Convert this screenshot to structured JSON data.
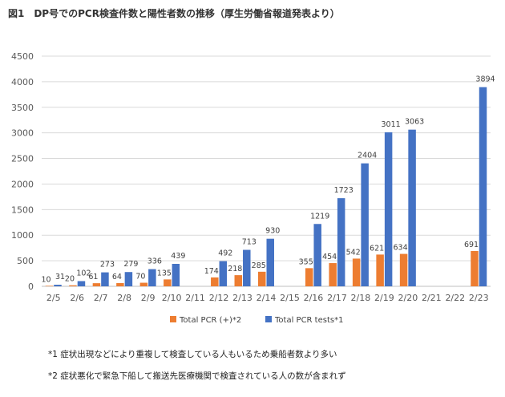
{
  "figure_title": "図1　DP号でのPCR検査件数と陽性者数の推移（厚生労働省報道発表より）",
  "notes": [
    "*1 症状出現などにより重複して検査している人もいるため乗船者数より多い",
    "*2 症状悪化で緊急下船して搬送先医療機関で検査されている人の数が含まれず"
  ],
  "chart_data": {
    "type": "bar",
    "title": "",
    "xlabel": "",
    "ylabel": "",
    "ylim": [
      0,
      4500
    ],
    "yticks": [
      0,
      500,
      1000,
      1500,
      2000,
      2500,
      3000,
      3500,
      4000,
      4500
    ],
    "grid": true,
    "legend_position": "bottom",
    "categories": [
      "2/5",
      "2/6",
      "2/7",
      "2/8",
      "2/9",
      "2/10",
      "2/11",
      "2/12",
      "2/13",
      "2/14",
      "2/15",
      "2/16",
      "2/17",
      "2/18",
      "2/19",
      "2/20",
      "2/21",
      "2/22",
      "2/23"
    ],
    "series": [
      {
        "name": "Total PCR (+)*2",
        "color": "#ed7d31",
        "values": [
          10,
          20,
          61,
          64,
          70,
          135,
          null,
          174,
          218,
          285,
          null,
          355,
          454,
          542,
          621,
          634,
          null,
          null,
          691
        ]
      },
      {
        "name": "Total PCR tests*1",
        "color": "#4472c4",
        "values": [
          31,
          102,
          273,
          279,
          336,
          439,
          null,
          492,
          713,
          930,
          null,
          1219,
          1723,
          2404,
          3011,
          3063,
          null,
          null,
          3894
        ]
      }
    ]
  }
}
